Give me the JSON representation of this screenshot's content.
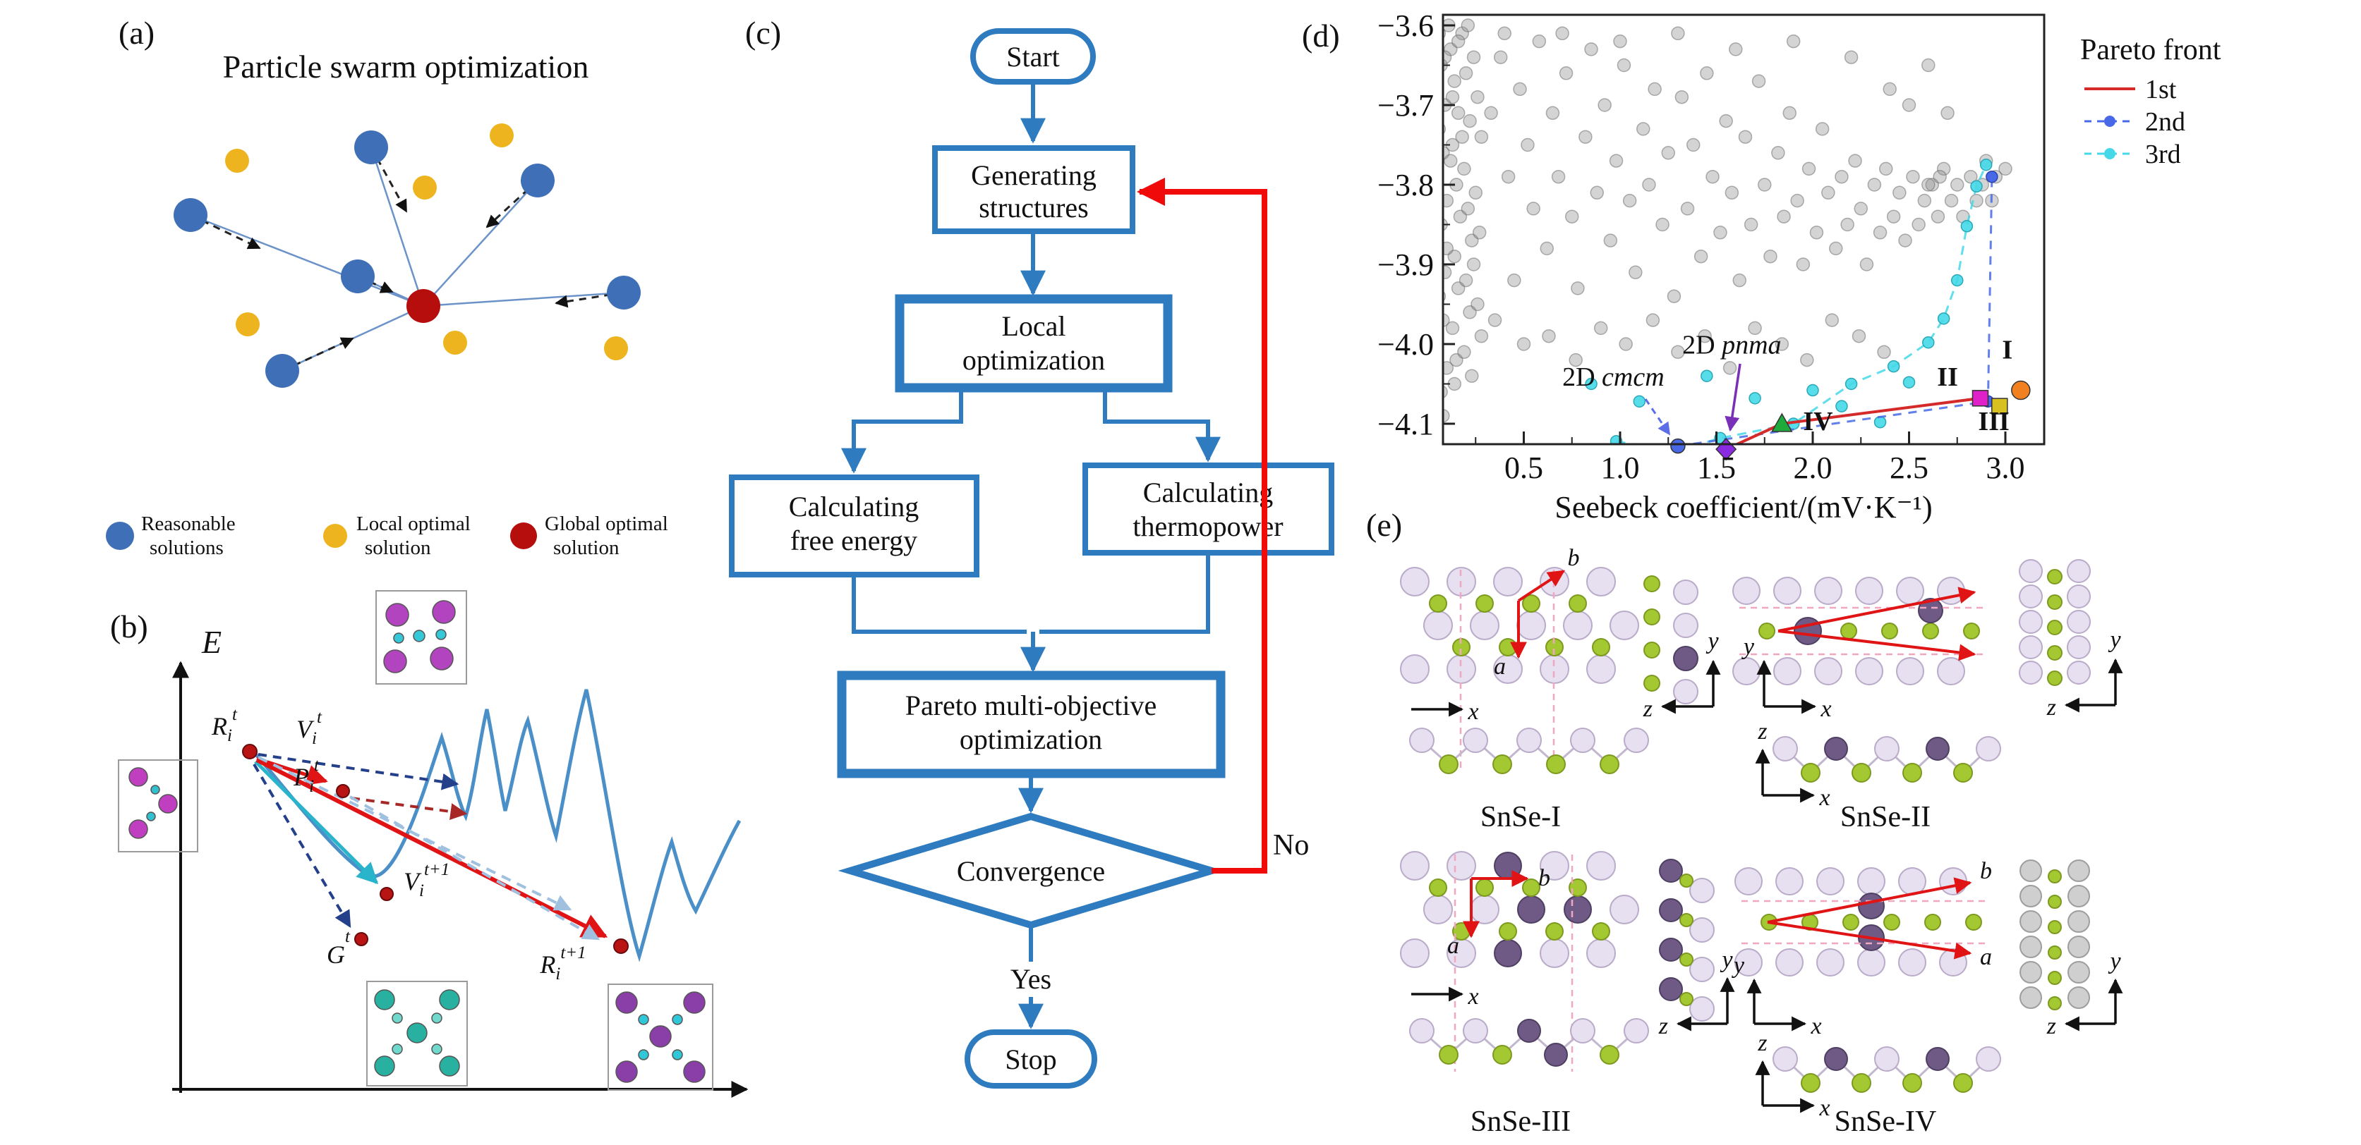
{
  "panels": {
    "a": {
      "label": "(a)",
      "title": "Particle swarm optimization",
      "legend": [
        {
          "lines": [
            "Reasonable",
            "solutions"
          ],
          "color": "#3e6fb7"
        },
        {
          "lines": [
            "Local optimal",
            "solution"
          ],
          "color": "#eeb41f"
        },
        {
          "lines": [
            "Global optimal",
            "solution"
          ],
          "color": "#b60d0d"
        }
      ]
    },
    "b": {
      "label": "(b)",
      "energy_axis": "E",
      "points": {
        "rt": {
          "base": "R",
          "sub": "i",
          "sup": "t"
        },
        "vt": {
          "base": "V",
          "sub": "i",
          "sup": "t"
        },
        "pt": {
          "base": "P",
          "sub": "i",
          "sup": "t"
        },
        "vt1": {
          "base": "V",
          "sub": "i",
          "sup": "t+1"
        },
        "gt": {
          "base": "G",
          "sub": "",
          "sup": "t"
        },
        "rt1": {
          "base": "R",
          "sub": "i",
          "sup": "t+1"
        }
      }
    },
    "c": {
      "label": "(c)",
      "accent": "#2e7bbf",
      "loop_color": "#f00a0a",
      "nodes": {
        "start": [
          "Start"
        ],
        "generating": [
          "Generating",
          "structures"
        ],
        "local": [
          "Local",
          "optimization"
        ],
        "free_energy": [
          "Calculating",
          "free energy"
        ],
        "thermopower": [
          "Calculating",
          "thermopower"
        ],
        "pareto": [
          "Pareto multi-objective",
          "optimization"
        ],
        "convergence": [
          "Convergence"
        ],
        "stop": [
          "Stop"
        ]
      },
      "branches": {
        "yes": "Yes",
        "no": "No"
      }
    },
    "d": {
      "label": "(d)"
    },
    "e": {
      "label": "(e)",
      "structures": [
        "SnSe-I",
        "SnSe-II",
        "SnSe-III",
        "SnSe-IV"
      ],
      "axis_letters": {
        "x": "x",
        "y": "y",
        "z": "z",
        "a": "a",
        "b": "b"
      }
    }
  },
  "chart_data": {
    "type": "scatter",
    "xlabel": "Seebeck coefficient/(mV·K⁻¹)",
    "x_ticks": [
      0.5,
      1.0,
      1.5,
      2.0,
      2.5,
      3.0
    ],
    "y_ticks": [
      -3.6,
      -3.7,
      -3.8,
      -3.9,
      -4.0,
      -4.1
    ],
    "xlim": [
      0.08,
      3.2
    ],
    "ylim": [
      -4.126,
      -3.587
    ],
    "legend": {
      "title": "Pareto front",
      "entries": [
        {
          "label": "1st",
          "color": "#d42a2a",
          "style": "solid-line"
        },
        {
          "label": "2nd",
          "color": "#4868e8",
          "style": "dashed-dot"
        },
        {
          "label": "3rd",
          "color": "#45d8e8",
          "style": "dashed-dot"
        }
      ]
    },
    "series": [
      {
        "name": "sampled structures",
        "marker": "circle",
        "color": "#8f8f8f",
        "points": [
          [
            0.05,
            -3.62
          ],
          [
            0.07,
            -3.65
          ],
          [
            0.04,
            -3.68
          ],
          [
            0.09,
            -3.7
          ],
          [
            0.06,
            -3.73
          ],
          [
            0.08,
            -3.76
          ],
          [
            0.05,
            -3.79
          ],
          [
            0.1,
            -3.82
          ],
          [
            0.07,
            -3.85
          ],
          [
            0.04,
            -3.88
          ],
          [
            0.09,
            -3.91
          ],
          [
            0.06,
            -3.94
          ],
          [
            0.08,
            -3.97
          ],
          [
            0.05,
            -4.0
          ],
          [
            0.1,
            -4.03
          ],
          [
            0.07,
            -4.06
          ],
          [
            0.12,
            -3.63
          ],
          [
            0.14,
            -3.67
          ],
          [
            0.16,
            -3.71
          ],
          [
            0.13,
            -3.75
          ],
          [
            0.15,
            -3.8
          ],
          [
            0.17,
            -3.84
          ],
          [
            0.14,
            -3.89
          ],
          [
            0.16,
            -3.93
          ],
          [
            0.13,
            -3.98
          ],
          [
            0.15,
            -4.02
          ],
          [
            0.18,
            -3.61
          ],
          [
            0.2,
            -3.66
          ],
          [
            0.22,
            -3.72
          ],
          [
            0.19,
            -3.78
          ],
          [
            0.21,
            -3.83
          ],
          [
            0.23,
            -3.87
          ],
          [
            0.2,
            -3.92
          ],
          [
            0.22,
            -3.96
          ],
          [
            0.19,
            -4.01
          ],
          [
            0.24,
            -3.64
          ],
          [
            0.26,
            -3.69
          ],
          [
            0.28,
            -3.74
          ],
          [
            0.25,
            -3.81
          ],
          [
            0.27,
            -3.86
          ],
          [
            0.24,
            -3.9
          ],
          [
            0.26,
            -3.95
          ],
          [
            0.28,
            -3.99
          ],
          [
            0.11,
            -3.6
          ],
          [
            0.09,
            -3.64
          ],
          [
            0.13,
            -3.69
          ],
          [
            0.18,
            -3.74
          ],
          [
            0.21,
            -3.6
          ],
          [
            0.06,
            -3.61
          ],
          [
            0.16,
            -3.62
          ],
          [
            0.12,
            -3.77
          ],
          [
            0.1,
            -3.88
          ],
          [
            0.08,
            -4.09
          ],
          [
            0.14,
            -4.05
          ],
          [
            0.23,
            -4.04
          ],
          [
            0.33,
            -3.71
          ],
          [
            0.38,
            -3.64
          ],
          [
            0.42,
            -3.79
          ],
          [
            0.45,
            -3.92
          ],
          [
            0.48,
            -3.68
          ],
          [
            0.52,
            -3.75
          ],
          [
            0.55,
            -3.83
          ],
          [
            0.58,
            -3.62
          ],
          [
            0.62,
            -3.88
          ],
          [
            0.65,
            -3.71
          ],
          [
            0.68,
            -3.79
          ],
          [
            0.72,
            -3.66
          ],
          [
            0.75,
            -3.84
          ],
          [
            0.78,
            -3.93
          ],
          [
            0.82,
            -3.74
          ],
          [
            0.85,
            -3.63
          ],
          [
            0.88,
            -3.81
          ],
          [
            0.92,
            -3.7
          ],
          [
            0.95,
            -3.87
          ],
          [
            0.98,
            -3.77
          ],
          [
            1.02,
            -3.65
          ],
          [
            1.05,
            -3.82
          ],
          [
            1.08,
            -3.91
          ],
          [
            1.12,
            -3.73
          ],
          [
            1.15,
            -3.8
          ],
          [
            1.18,
            -3.68
          ],
          [
            1.22,
            -3.85
          ],
          [
            1.25,
            -3.76
          ],
          [
            1.28,
            -3.94
          ],
          [
            1.32,
            -3.69
          ],
          [
            1.35,
            -3.83
          ],
          [
            1.38,
            -3.75
          ],
          [
            1.42,
            -3.89
          ],
          [
            1.45,
            -3.66
          ],
          [
            1.48,
            -3.79
          ],
          [
            1.52,
            -3.86
          ],
          [
            1.55,
            -3.72
          ],
          [
            1.58,
            -3.81
          ],
          [
            1.62,
            -3.92
          ],
          [
            1.65,
            -3.74
          ],
          [
            1.68,
            -3.85
          ],
          [
            1.72,
            -3.67
          ],
          [
            1.75,
            -3.8
          ],
          [
            1.78,
            -3.89
          ],
          [
            1.82,
            -3.76
          ],
          [
            1.85,
            -3.84
          ],
          [
            1.88,
            -3.71
          ],
          [
            1.92,
            -3.82
          ],
          [
            1.95,
            -3.9
          ],
          [
            1.98,
            -3.78
          ],
          [
            2.02,
            -3.86
          ],
          [
            2.05,
            -3.73
          ],
          [
            2.08,
            -3.81
          ],
          [
            2.12,
            -3.88
          ],
          [
            2.15,
            -3.79
          ],
          [
            2.18,
            -3.85
          ],
          [
            2.22,
            -3.77
          ],
          [
            2.25,
            -3.83
          ],
          [
            2.28,
            -3.9
          ],
          [
            2.32,
            -3.8
          ],
          [
            2.35,
            -3.86
          ],
          [
            2.38,
            -3.78
          ],
          [
            2.42,
            -3.84
          ],
          [
            2.45,
            -3.81
          ],
          [
            2.48,
            -3.87
          ],
          [
            2.52,
            -3.79
          ],
          [
            2.55,
            -3.85
          ],
          [
            2.58,
            -3.82
          ],
          [
            2.62,
            -3.8
          ],
          [
            2.65,
            -3.84
          ],
          [
            2.68,
            -3.78
          ],
          [
            2.72,
            -3.82
          ],
          [
            2.75,
            -3.8
          ],
          [
            2.78,
            -3.84
          ],
          [
            2.82,
            -3.79
          ],
          [
            2.85,
            -3.82
          ],
          [
            0.35,
            -3.97
          ],
          [
            0.5,
            -4.0
          ],
          [
            0.63,
            -3.99
          ],
          [
            0.77,
            -4.02
          ],
          [
            0.9,
            -3.98
          ],
          [
            1.03,
            -4.0
          ],
          [
            1.17,
            -3.97
          ],
          [
            1.3,
            -4.01
          ],
          [
            1.44,
            -3.99
          ],
          [
            1.57,
            -4.03
          ],
          [
            1.7,
            -3.98
          ],
          [
            1.84,
            -4.0
          ],
          [
            1.97,
            -4.02
          ],
          [
            2.1,
            -3.97
          ],
          [
            2.24,
            -3.99
          ],
          [
            2.37,
            -4.01
          ],
          [
            0.4,
            -3.61
          ],
          [
            0.7,
            -3.61
          ],
          [
            1.0,
            -3.62
          ],
          [
            1.3,
            -3.61
          ],
          [
            1.6,
            -3.63
          ],
          [
            1.9,
            -3.62
          ],
          [
            2.2,
            -3.64
          ],
          [
            2.4,
            -3.68
          ],
          [
            2.5,
            -3.7
          ],
          [
            2.6,
            -3.65
          ],
          [
            2.7,
            -3.71
          ],
          [
            2.9,
            -3.77
          ],
          [
            2.95,
            -3.79
          ],
          [
            3.0,
            -3.78
          ],
          [
            2.88,
            -3.8
          ],
          [
            2.93,
            -3.82
          ],
          [
            2.6,
            -3.8
          ],
          [
            2.66,
            -3.79
          ]
        ]
      },
      {
        "name": "3rd Pareto front",
        "marker": "circle",
        "color": "#45d8e8",
        "line": "dashed",
        "front_points": [
          [
            0.98,
            -4.122
          ],
          [
            1.28,
            -4.135
          ],
          [
            1.52,
            -4.118
          ],
          [
            1.9,
            -4.1
          ],
          [
            2.2,
            -4.05
          ],
          [
            2.42,
            -4.028
          ],
          [
            2.6,
            -3.998
          ],
          [
            2.68,
            -3.968
          ],
          [
            2.75,
            -3.92
          ],
          [
            2.8,
            -3.852
          ],
          [
            2.85,
            -3.802
          ],
          [
            2.9,
            -3.775
          ]
        ],
        "scatter_points": [
          [
            0.85,
            -4.05
          ],
          [
            1.1,
            -4.072
          ],
          [
            1.45,
            -4.04
          ],
          [
            1.7,
            -4.068
          ],
          [
            2.0,
            -4.058
          ],
          [
            2.15,
            -4.078
          ],
          [
            2.35,
            -4.098
          ],
          [
            2.5,
            -4.048
          ]
        ]
      },
      {
        "name": "2nd Pareto front",
        "marker": "circle",
        "color": "#4868e8",
        "line": "dashed",
        "front_points": [
          [
            1.3,
            -4.128
          ],
          [
            2.91,
            -4.072
          ],
          [
            2.93,
            -3.79
          ]
        ]
      },
      {
        "name": "1st Pareto front",
        "color": "#d42a2a",
        "line": "solid",
        "front_points": [
          [
            1.55,
            -4.132
          ],
          [
            1.84,
            -4.1
          ],
          [
            2.87,
            -4.068
          ]
        ]
      }
    ],
    "special_markers": [
      {
        "label": "2D cmcm",
        "shape": "circle",
        "color": "#4868e8",
        "x": 1.3,
        "y": -4.128
      },
      {
        "label": "2D pnma",
        "shape": "diamond",
        "color": "#8a2be2",
        "x": 1.55,
        "y": -4.132
      },
      {
        "label": "IV",
        "shape": "triangle",
        "color": "#1faa3c",
        "x": 1.84,
        "y": -4.1
      },
      {
        "label": "II",
        "shape": "square",
        "color": "#e020c8",
        "x": 2.87,
        "y": -4.068
      },
      {
        "label": "III",
        "shape": "square",
        "color": "#d8c020",
        "x": 2.97,
        "y": -4.078
      },
      {
        "label": "I",
        "shape": "circle",
        "color": "#f08020",
        "x": 3.08,
        "y": -4.058
      }
    ],
    "annotations": [
      {
        "prefix": "2D ",
        "name": "cmcm",
        "color": "#5b6ee8",
        "x": 0.7,
        "y": -4.052,
        "anchor": "start"
      },
      {
        "prefix": "2D ",
        "name": "pnma",
        "color": "#7a2fb8",
        "x": 1.58,
        "y": -4.012,
        "anchor": "middle"
      },
      {
        "text": "I",
        "color": "#f08020",
        "x": 3.01,
        "y": -4.018,
        "anchor": "middle"
      },
      {
        "text": "II",
        "color": "#e020c8",
        "x": 2.7,
        "y": -4.052,
        "anchor": "middle"
      },
      {
        "text": "III",
        "color": "#e0b818",
        "x": 2.94,
        "y": -4.108,
        "anchor": "middle"
      },
      {
        "text": "IV",
        "color": "#1faa3c",
        "x": 1.95,
        "y": -4.108,
        "anchor": "start"
      }
    ]
  }
}
